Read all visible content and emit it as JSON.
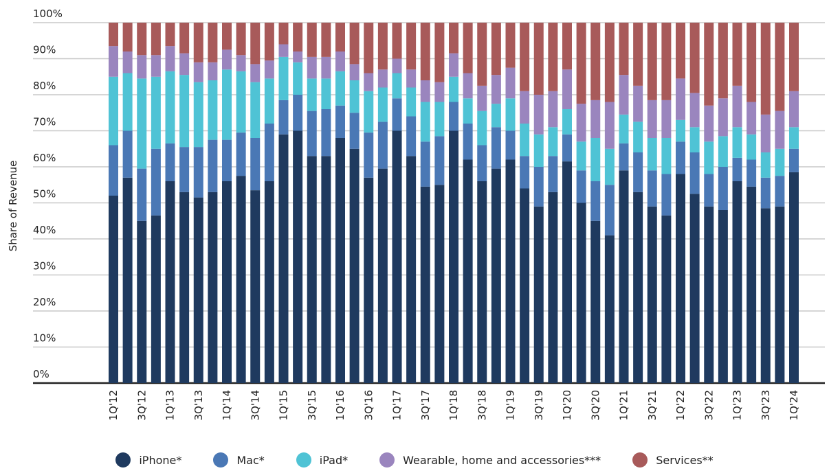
{
  "chart_data": {
    "type": "bar",
    "stacked": true,
    "ylabel": "Share of Revenue",
    "ylim": [
      0,
      100
    ],
    "yticks": [
      "0%",
      "10%",
      "20%",
      "30%",
      "40%",
      "50%",
      "60%",
      "70%",
      "80%",
      "90%",
      "100%"
    ],
    "categories": [
      "1Q'12",
      "2Q'12",
      "3Q'12",
      "4Q'12",
      "1Q'13",
      "2Q'13",
      "3Q'13",
      "4Q'13",
      "1Q'14",
      "2Q'14",
      "3Q'14",
      "4Q'14",
      "1Q'15",
      "2Q'15",
      "3Q'15",
      "4Q'15",
      "1Q'16",
      "2Q'16",
      "3Q'16",
      "4Q'16",
      "1Q'17",
      "2Q'17",
      "3Q'17",
      "4Q'17",
      "1Q'18",
      "2Q'18",
      "3Q'18",
      "4Q'18",
      "1Q'19",
      "2Q'19",
      "3Q'19",
      "4Q'19",
      "1Q'20",
      "2Q'20",
      "3Q'20",
      "4Q'20",
      "1Q'21",
      "2Q'21",
      "3Q'21",
      "4Q'21",
      "1Q'22",
      "2Q'22",
      "3Q'22",
      "4Q'22",
      "1Q'23",
      "2Q'23",
      "3Q'23",
      "4Q'23",
      "1Q'24"
    ],
    "x_tick_labels": [
      "1Q'12",
      "3Q'12",
      "1Q'13",
      "3Q'13",
      "1Q'14",
      "3Q'14",
      "1Q'15",
      "3Q'15",
      "1Q'16",
      "3Q'16",
      "1Q'17",
      "3Q'17",
      "1Q'18",
      "3Q'18",
      "1Q'19",
      "3Q'19",
      "1Q'20",
      "3Q'20",
      "1Q'21",
      "3Q'21",
      "1Q'22",
      "3Q'22",
      "1Q'23",
      "3Q'23",
      "1Q'24"
    ],
    "series": [
      {
        "name": "iPhone*",
        "color": "#1f3a5f",
        "values": [
          52,
          57,
          45,
          46.5,
          56,
          53,
          51.5,
          53,
          56,
          57.5,
          53.5,
          56,
          69,
          70,
          63,
          63,
          68,
          65,
          57,
          59.5,
          70,
          63,
          54.5,
          55,
          70,
          62,
          56,
          59.5,
          62,
          54,
          49,
          53,
          61.5,
          50,
          45,
          41,
          59,
          53,
          49,
          46.5,
          58,
          52.5,
          49,
          48,
          56,
          54.5,
          48.5,
          49,
          58.5
        ]
      },
      {
        "name": "Mac*",
        "color": "#4a78b5",
        "values": [
          14,
          13,
          14.5,
          18.5,
          10.5,
          12.5,
          14,
          14.5,
          11.5,
          12,
          14.5,
          16,
          9.5,
          10,
          12.5,
          13,
          9,
          10,
          12.5,
          13,
          9,
          11,
          12.5,
          13.5,
          8,
          10,
          10,
          11.5,
          8,
          9,
          11,
          10,
          7.5,
          9,
          11,
          14,
          7.5,
          11,
          10,
          11.5,
          9,
          11.5,
          9,
          12,
          6.5,
          7.5,
          8.5,
          8.5,
          6.5
        ]
      },
      {
        "name": "iPad*",
        "color": "#4fc3d5",
        "values": [
          19,
          16,
          25,
          20,
          20,
          20,
          18,
          16.5,
          19.5,
          17,
          15.5,
          12.5,
          12,
          9,
          9,
          8.5,
          9.5,
          9,
          11.5,
          9.5,
          7,
          8,
          11,
          9.5,
          7,
          7,
          9.5,
          6.5,
          9,
          9,
          9,
          8,
          7,
          8,
          12,
          10,
          8,
          8.5,
          9,
          10,
          6,
          7,
          9,
          8.5,
          8.5,
          7,
          7,
          7.5,
          6
        ]
      },
      {
        "name": "Wearable, home and accessories***",
        "color": "#9a85be",
        "values": [
          8.5,
          6,
          6.5,
          6,
          7,
          6,
          5.5,
          5,
          5.5,
          4.5,
          5,
          5,
          3.5,
          3,
          6,
          6,
          5.5,
          4.5,
          5,
          5,
          4,
          5,
          6,
          5.5,
          6.5,
          7,
          7,
          8,
          8.5,
          9,
          11,
          10,
          11,
          10.5,
          10.5,
          13,
          11,
          10,
          10.5,
          10.5,
          11.5,
          9.5,
          10,
          10.5,
          11.5,
          9,
          10.5,
          10.5,
          10
        ]
      },
      {
        "name": "Services**",
        "color": "#a85a5a",
        "values": [
          6.5,
          8,
          9,
          9,
          6.5,
          8.5,
          11,
          11,
          7.5,
          9,
          11.5,
          10.5,
          6,
          8,
          9.5,
          9.5,
          8,
          11.5,
          14,
          13,
          10,
          13,
          16,
          16.5,
          8.5,
          14,
          17.5,
          14.5,
          12.5,
          19,
          20,
          19,
          13,
          22.5,
          21.5,
          22,
          14.5,
          17.5,
          21.5,
          21.5,
          15.5,
          19.5,
          23,
          21,
          17.5,
          22,
          25.5,
          24.5,
          19
        ]
      }
    ]
  }
}
